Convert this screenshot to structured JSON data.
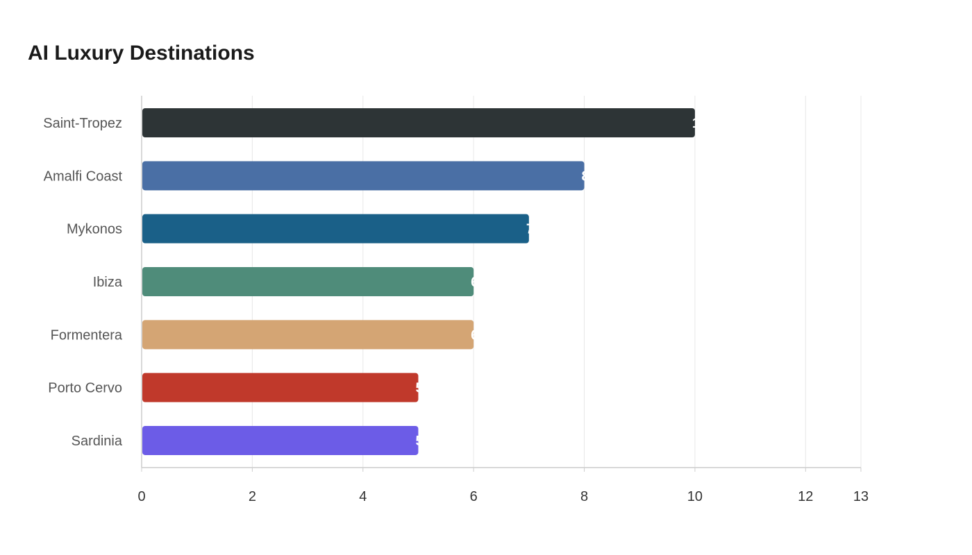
{
  "chart_data": {
    "type": "bar",
    "orientation": "horizontal",
    "title": "AI Luxury Destinations",
    "xlabel": "",
    "ylabel": "",
    "categories": [
      "Saint-Tropez",
      "Amalfi Coast",
      "Mykonos",
      "Ibiza",
      "Formentera",
      "Porto Cervo",
      "Sardinia"
    ],
    "values": [
      10,
      8,
      7,
      6,
      6,
      5,
      5
    ],
    "colors": [
      "#2d3436",
      "#4a6fa5",
      "#1a6088",
      "#4f8c7a",
      "#d4a574",
      "#c0392b",
      "#6c5ce7"
    ],
    "xlim": [
      0,
      13
    ],
    "xticks": [
      0,
      2,
      4,
      6,
      8,
      10,
      12,
      13
    ],
    "grid": true,
    "legend": "none",
    "value_labels": true
  }
}
